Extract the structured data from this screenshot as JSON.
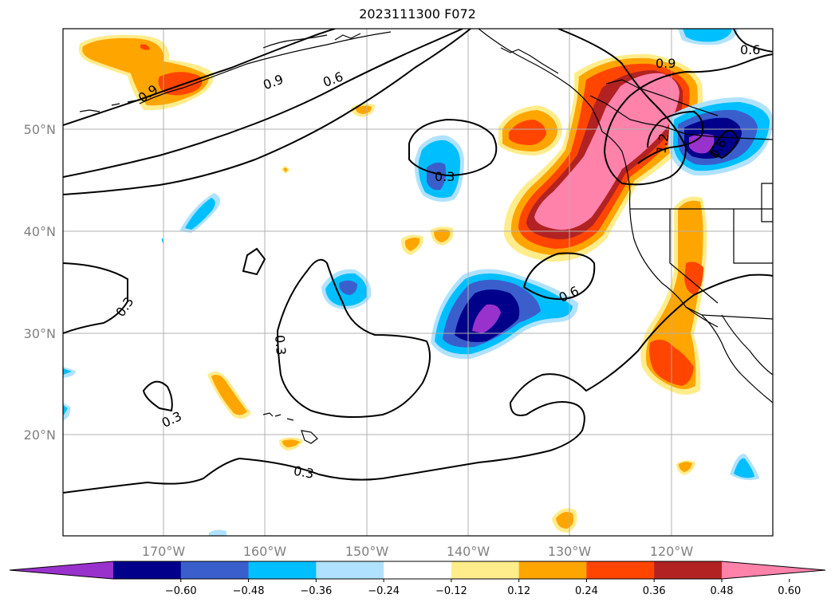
{
  "title": "2023111300 F072",
  "map": {
    "lat_labels": [
      "50°N",
      "40°N",
      "30°N",
      "20°N"
    ],
    "lon_labels": [
      "170°W",
      "160°W",
      "150°W",
      "140°W",
      "130°W",
      "120°W"
    ],
    "contour_labels": [
      "0.9",
      "0.6",
      "0.9",
      "0.6",
      "0.9",
      "0.3",
      "0.3",
      "0.3",
      "0.6",
      "0.3",
      "0.3",
      "1.2",
      "0.6"
    ]
  },
  "colorbar": {
    "ticks": [
      "−0.60",
      "−0.48",
      "−0.36",
      "−0.24",
      "−0.12",
      "0.12",
      "0.24",
      "0.36",
      "0.48",
      "0.60"
    ],
    "colors": [
      "#9932cc",
      "#00008b",
      "#3a5fcd",
      "#00bfff",
      "#b0e2ff",
      "#ffffff",
      "#ffec8b",
      "#ffa500",
      "#ff4500",
      "#b22222",
      "#ff82ab"
    ]
  }
}
